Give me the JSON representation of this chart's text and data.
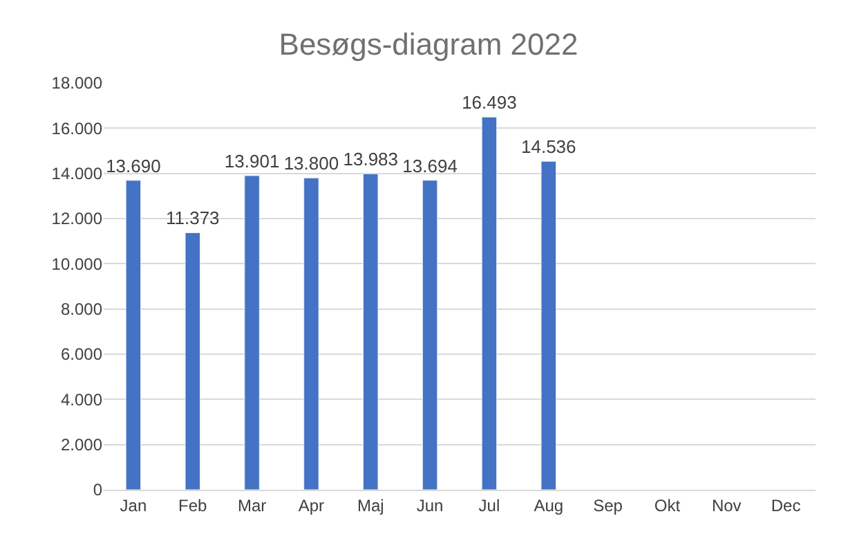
{
  "chart_data": {
    "type": "bar",
    "title": "Besøgs-diagram 2022",
    "categories": [
      "Jan",
      "Feb",
      "Mar",
      "Apr",
      "Maj",
      "Jun",
      "Jul",
      "Aug",
      "Sep",
      "Okt",
      "Nov",
      "Dec"
    ],
    "values": [
      13690,
      11373,
      13901,
      13800,
      13983,
      13694,
      16493,
      14536,
      null,
      null,
      null,
      null
    ],
    "value_labels": [
      "13.690",
      "11.373",
      "13.901",
      "13.800",
      "13.983",
      "13.694",
      "16.493",
      "14.536",
      null,
      null,
      null,
      null
    ],
    "color": "#4472c4",
    "ylim": [
      0,
      18000
    ],
    "yticks": [
      {
        "value": 0,
        "label": "0"
      },
      {
        "value": 2000,
        "label": "2.000"
      },
      {
        "value": 4000,
        "label": "4.000"
      },
      {
        "value": 6000,
        "label": "6.000"
      },
      {
        "value": 8000,
        "label": "8.000"
      },
      {
        "value": 10000,
        "label": "10.000"
      },
      {
        "value": 12000,
        "label": "12.000"
      },
      {
        "value": 14000,
        "label": "14.000"
      },
      {
        "value": 16000,
        "label": "16.000"
      },
      {
        "value": 18000,
        "label": "18.000"
      }
    ],
    "grid": "y"
  }
}
